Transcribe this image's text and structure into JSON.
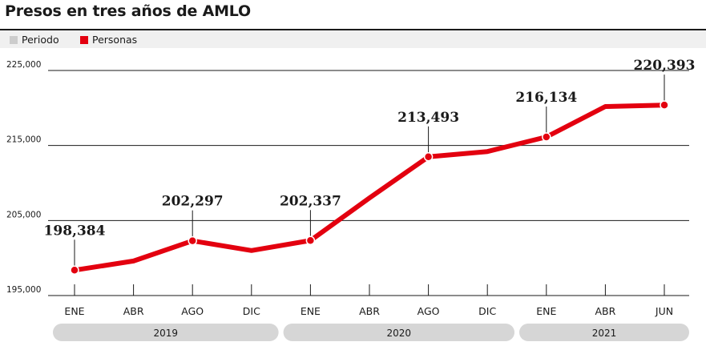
{
  "title": "Presos en tres años de AMLO",
  "legend": [
    {
      "label": "Periodo",
      "color": "#cccccc"
    },
    {
      "label": "Personas",
      "color": "#e3000f"
    }
  ],
  "chart_data": {
    "type": "line",
    "title": "Presos en tres años de AMLO",
    "xlabel": "",
    "ylabel": "",
    "ylim": [
      195000,
      225000
    ],
    "y_ticks": [
      "195,000",
      "205,000",
      "215,000",
      "225,000"
    ],
    "y_tick_values": [
      195000,
      205000,
      215000,
      225000
    ],
    "categories": [
      "ENE",
      "ABR",
      "AGO",
      "DIC",
      "ENE",
      "ABR",
      "AGO",
      "DIC",
      "ENE",
      "ABR",
      "JUN"
    ],
    "periods": [
      {
        "label": "2019",
        "start": 0,
        "end": 3
      },
      {
        "label": "2020",
        "start": 4,
        "end": 7
      },
      {
        "label": "2021",
        "start": 8,
        "end": 10
      }
    ],
    "series": [
      {
        "name": "Personas",
        "color": "#e3000f",
        "values": [
          198384,
          199600,
          202297,
          201000,
          202337,
          208000,
          213493,
          214200,
          216134,
          220200,
          220393
        ]
      }
    ],
    "data_labels": [
      {
        "index": 0,
        "text": "198,384"
      },
      {
        "index": 2,
        "text": "202,297"
      },
      {
        "index": 4,
        "text": "202,337"
      },
      {
        "index": 6,
        "text": "213,493"
      },
      {
        "index": 8,
        "text": "216,134"
      },
      {
        "index": 10,
        "text": "220,393"
      }
    ],
    "grid": true,
    "legend_position": "top-left"
  }
}
